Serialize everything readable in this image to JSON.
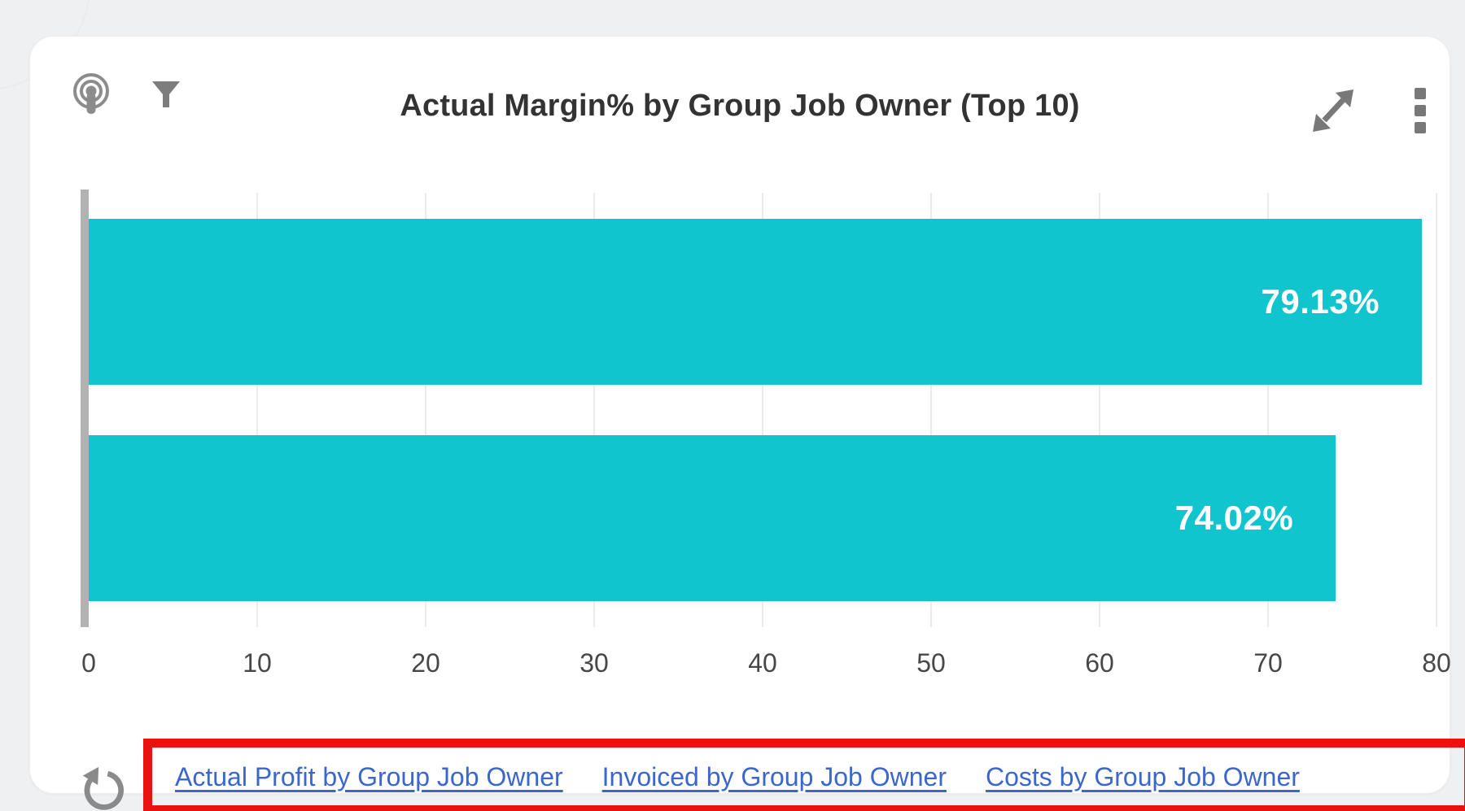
{
  "header": {
    "title": "Actual Margin% by Group Job Owner (Top 10)",
    "icons": [
      "podcast-icon",
      "filter-icon",
      "expand-icon",
      "kebab-menu-icon"
    ]
  },
  "chart_data": {
    "type": "bar",
    "orientation": "horizontal",
    "title": "Actual Margin% by Group Job Owner (Top 10)",
    "categories": [
      "",
      ""
    ],
    "values": [
      79.13,
      74.02
    ],
    "value_labels": [
      "79.13%",
      "74.02%"
    ],
    "xlabel": "",
    "ylabel": "",
    "xlim": [
      0,
      80
    ],
    "ticks": [
      0,
      10,
      20,
      30,
      40,
      50,
      60,
      70,
      80
    ],
    "grid": "vertical",
    "legend": "none",
    "bar_color": "#10c5ce",
    "label_color": "#ffffff"
  },
  "footer": {
    "refresh_icon": "refresh-undo-icon",
    "links": [
      "Actual Profit by Group Job Owner",
      "Invoiced by Group Job Owner",
      "Costs by Group Job Owner"
    ]
  },
  "annotation": {
    "shape": "red-rectangle",
    "color": "#ea1111"
  },
  "colors": {
    "bar": "#10c5ce",
    "page_background": "#eef0f2",
    "card_background": "#ffffff",
    "title_text": "#333333",
    "axis_text": "#474747",
    "link_text": "#3b67cd",
    "icon_gray": "#7d7d7d"
  }
}
